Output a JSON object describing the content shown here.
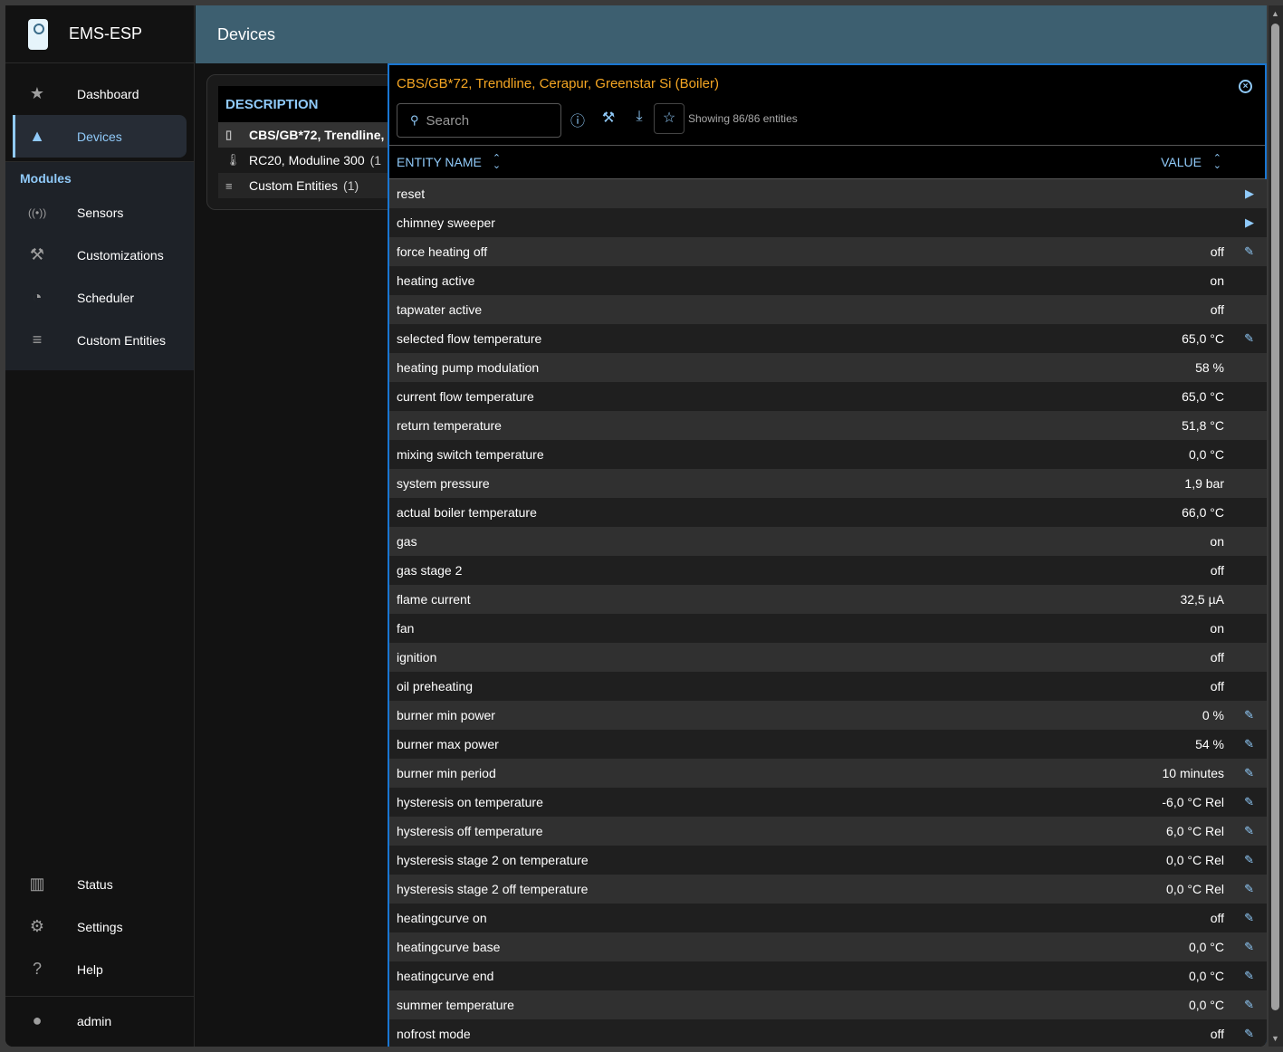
{
  "app": {
    "title": "EMS-ESP",
    "page_title": "Devices"
  },
  "sidebar": {
    "items": [
      {
        "label": "Dashboard",
        "icon": "star-icon"
      },
      {
        "label": "Devices",
        "icon": "shapes-icon",
        "active": true
      }
    ],
    "modules_header": "Modules",
    "modules": [
      {
        "label": "Sensors",
        "icon": "sensors-icon"
      },
      {
        "label": "Customizations",
        "icon": "tools-icon"
      },
      {
        "label": "Scheduler",
        "icon": "schedule-add-icon"
      },
      {
        "label": "Custom Entities",
        "icon": "playlist-add-icon"
      }
    ],
    "bottom": [
      {
        "label": "Status",
        "icon": "chart-icon"
      },
      {
        "label": "Settings",
        "icon": "gear-icon"
      },
      {
        "label": "Help",
        "icon": "help-icon"
      }
    ],
    "user": "admin"
  },
  "devices": {
    "header": "DESCRIPTION",
    "rows": [
      {
        "name": "CBS/GB*72, Trendline,",
        "count": "",
        "icon": "boiler-icon",
        "selected": true
      },
      {
        "name": "RC20, Moduline 300",
        "count": "(1",
        "icon": "thermostat-icon"
      },
      {
        "name": "Custom Entities",
        "count": "(1)",
        "icon": "playlist-add-icon"
      }
    ]
  },
  "panel": {
    "title": "CBS/GB*72, Trendline, Cerapur, Greenstar Si (Boiler)",
    "search_placeholder": "Search",
    "search_value": "",
    "showing": "Showing 86/86 entities",
    "col_name": "ENTITY NAME",
    "col_value": "VALUE",
    "accent": "#90caf9",
    "title_color": "#f5a623",
    "entities": [
      {
        "name": "reset",
        "value": "",
        "action": "play"
      },
      {
        "name": "chimney sweeper",
        "value": "",
        "action": "play"
      },
      {
        "name": "force heating off",
        "value": "off",
        "action": "edit"
      },
      {
        "name": "heating active",
        "value": "on",
        "action": ""
      },
      {
        "name": "tapwater active",
        "value": "off",
        "action": ""
      },
      {
        "name": "selected flow temperature",
        "value": "65,0 °C",
        "action": "edit"
      },
      {
        "name": "heating pump modulation",
        "value": "58 %",
        "action": ""
      },
      {
        "name": "current flow temperature",
        "value": "65,0 °C",
        "action": ""
      },
      {
        "name": "return temperature",
        "value": "51,8 °C",
        "action": ""
      },
      {
        "name": "mixing switch temperature",
        "value": "0,0 °C",
        "action": ""
      },
      {
        "name": "system pressure",
        "value": "1,9 bar",
        "action": ""
      },
      {
        "name": "actual boiler temperature",
        "value": "66,0 °C",
        "action": ""
      },
      {
        "name": "gas",
        "value": "on",
        "action": ""
      },
      {
        "name": "gas stage 2",
        "value": "off",
        "action": ""
      },
      {
        "name": "flame current",
        "value": "32,5 µA",
        "action": ""
      },
      {
        "name": "fan",
        "value": "on",
        "action": ""
      },
      {
        "name": "ignition",
        "value": "off",
        "action": ""
      },
      {
        "name": "oil preheating",
        "value": "off",
        "action": ""
      },
      {
        "name": "burner min power",
        "value": "0 %",
        "action": "edit"
      },
      {
        "name": "burner max power",
        "value": "54 %",
        "action": "edit"
      },
      {
        "name": "burner min period",
        "value": "10 minutes",
        "action": "edit"
      },
      {
        "name": "hysteresis on temperature",
        "value": "-6,0 °C Rel",
        "action": "edit"
      },
      {
        "name": "hysteresis off temperature",
        "value": "6,0 °C Rel",
        "action": "edit"
      },
      {
        "name": "hysteresis stage 2 on temperature",
        "value": "0,0 °C Rel",
        "action": "edit"
      },
      {
        "name": "hysteresis stage 2 off temperature",
        "value": "0,0 °C Rel",
        "action": "edit"
      },
      {
        "name": "heatingcurve on",
        "value": "off",
        "action": "edit"
      },
      {
        "name": "heatingcurve base",
        "value": "0,0 °C",
        "action": "edit"
      },
      {
        "name": "heatingcurve end",
        "value": "0,0 °C",
        "action": "edit"
      },
      {
        "name": "summer temperature",
        "value": "0,0 °C",
        "action": "edit"
      },
      {
        "name": "nofrost mode",
        "value": "off",
        "action": "edit"
      }
    ]
  }
}
